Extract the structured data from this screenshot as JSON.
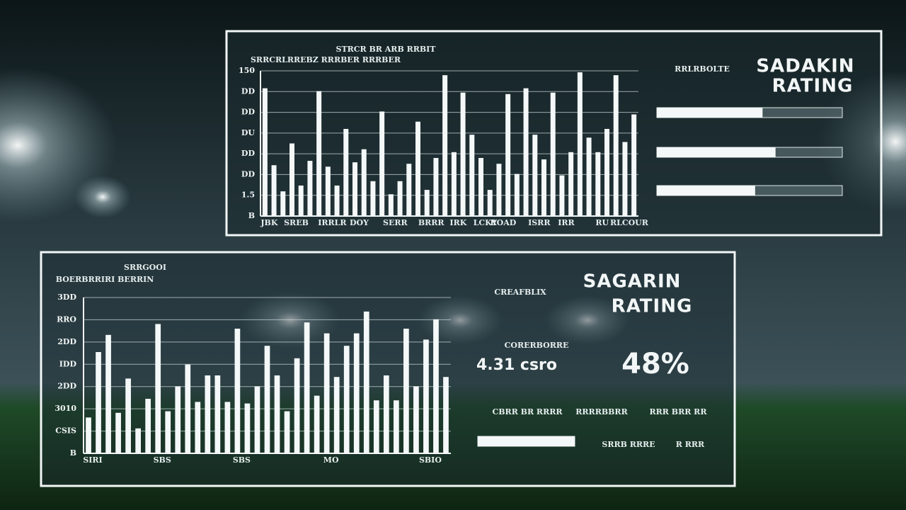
{
  "chart_data": [
    {
      "type": "bar",
      "title": "STRCR BR ARB RRBIT",
      "subtitle": "SRRCRLRREBZ RRRBER RRRBER",
      "y_axis_labels": [
        "150",
        "DD",
        "DD",
        "DU",
        "DD",
        "DD",
        "1.5",
        "B"
      ],
      "ylim": [
        0,
        100
      ],
      "categories": [
        "JBK",
        null,
        null,
        "SREB",
        null,
        null,
        null,
        "IRRLR",
        null,
        null,
        "DOY",
        null,
        null,
        null,
        "SERR",
        null,
        null,
        null,
        "BRRR",
        null,
        null,
        "IRK",
        null,
        null,
        "LCKY",
        null,
        "ROAD",
        null,
        null,
        null,
        "ISRR",
        null,
        null,
        "IRR",
        null,
        null,
        null,
        "RU",
        null,
        null,
        "RLCOUR",
        null
      ],
      "values": [
        88,
        35,
        17,
        50,
        21,
        38,
        86,
        34,
        21,
        60,
        37,
        46,
        24,
        72,
        15,
        24,
        36,
        65,
        18,
        40,
        97,
        44,
        85,
        56,
        40,
        18,
        36,
        84,
        29,
        88,
        56,
        39,
        85,
        28,
        44,
        99,
        54,
        44,
        60,
        97,
        51,
        70
      ],
      "color": "#f4f8f8",
      "side": {
        "heading": "RRLRBOLTE",
        "rating": [
          "SADAKIN",
          "RATING"
        ],
        "meters": [
          57,
          64,
          53
        ]
      }
    },
    {
      "type": "bar",
      "title": "SRRGOOI",
      "subtitle": "BOERBRRIRI BERRIN",
      "y_axis_labels": [
        "3DD",
        "RRO",
        "2DD",
        "IDD",
        "2DD",
        "3010",
        "CSIS",
        "B"
      ],
      "ylim": [
        0,
        100
      ],
      "categories": [
        "SIRI",
        null,
        null,
        null,
        null,
        null,
        null,
        "SBS",
        null,
        null,
        null,
        null,
        null,
        null,
        null,
        "SBS",
        null,
        null,
        null,
        null,
        null,
        null,
        null,
        null,
        "MO",
        null,
        null,
        null,
        null,
        null,
        null,
        null,
        null,
        null,
        "SBIO",
        null,
        null
      ],
      "values": [
        23,
        65,
        76,
        26,
        48,
        16,
        35,
        83,
        27,
        43,
        57,
        33,
        50,
        50,
        33,
        80,
        32,
        43,
        69,
        50,
        27,
        61,
        84,
        37,
        77,
        49,
        69,
        77,
        91,
        34,
        50,
        34,
        80,
        43,
        73,
        86,
        49
      ],
      "color": "#f4f8f8",
      "side": {
        "heading": "CREAFBLIX",
        "rating": [
          "SAGARIN",
          "RATING"
        ],
        "metric_label": "CORERBORRE",
        "metric": "4.31 csro",
        "percent": "48%",
        "meters": [
          100
        ],
        "notes": [
          "CBRR BR RRRR",
          "RRRRBBRR",
          "RRR BRR RR",
          "SRRB RRRE",
          "R RRR"
        ]
      }
    }
  ]
}
